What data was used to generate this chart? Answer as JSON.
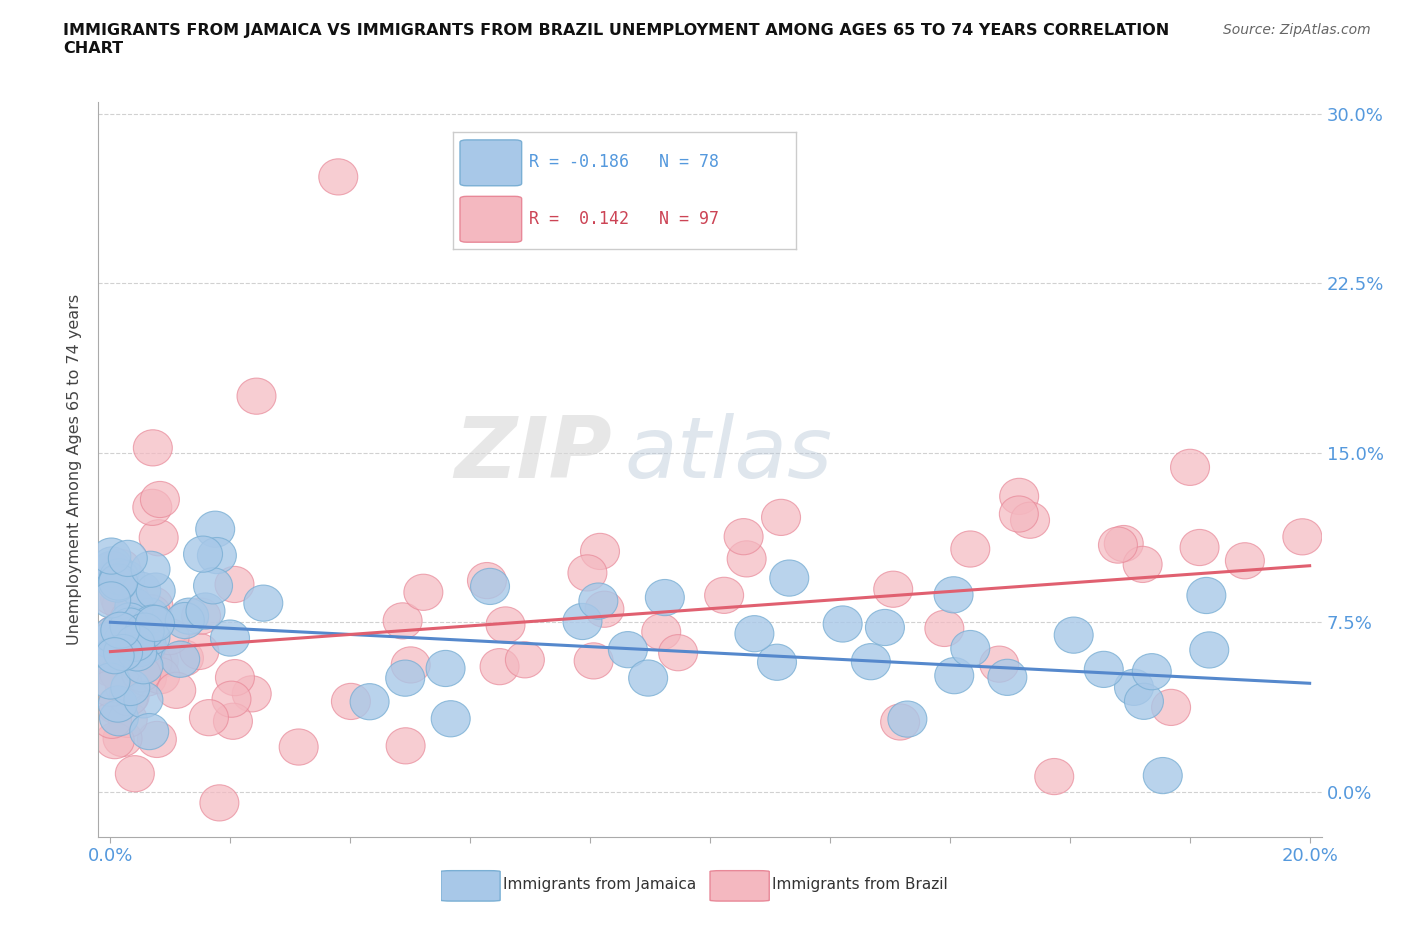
{
  "title": "IMMIGRANTS FROM JAMAICA VS IMMIGRANTS FROM BRAZIL UNEMPLOYMENT AMONG AGES 65 TO 74 YEARS CORRELATION\nCHART",
  "source_text": "Source: ZipAtlas.com",
  "ylabel": "Unemployment Among Ages 65 to 74 years",
  "xlim": [
    -0.002,
    0.202
  ],
  "ylim": [
    -0.02,
    0.305
  ],
  "ytick_positions": [
    0.0,
    0.075,
    0.15,
    0.225,
    0.3
  ],
  "ytick_labels": [
    "0.0%",
    "7.5%",
    "15.0%",
    "22.5%",
    "30.0%"
  ],
  "xtick_positions": [
    0.0,
    0.02,
    0.04,
    0.06,
    0.08,
    0.1,
    0.12,
    0.14,
    0.16,
    0.18,
    0.2
  ],
  "xtick_labels": [
    "0.0%",
    "",
    "",
    "",
    "",
    "",
    "",
    "",
    "",
    "",
    "20.0%"
  ],
  "jamaica_color": "#a8c8e8",
  "jamaica_edge_color": "#7aafd4",
  "brazil_color": "#f4b8c0",
  "brazil_edge_color": "#e88898",
  "jamaica_line_color": "#5588cc",
  "brazil_line_color": "#e06070",
  "watermark_zip": "ZIP",
  "watermark_atlas": "atlas",
  "legend_r_jamaica": "R = -0.186",
  "legend_n_jamaica": "N = 78",
  "legend_r_brazil": "R =  0.142",
  "legend_n_brazil": "N = 97",
  "jamaica_trend_x": [
    0.0,
    0.2
  ],
  "jamaica_trend_y": [
    0.075,
    0.048
  ],
  "brazil_trend_x": [
    0.0,
    0.2
  ],
  "brazil_trend_y": [
    0.062,
    0.1
  ],
  "background_color": "#ffffff",
  "axis_color": "#aaaaaa",
  "tick_color": "#5599dd",
  "grid_color": "#cccccc",
  "legend_box_color": "#f0f4ff"
}
